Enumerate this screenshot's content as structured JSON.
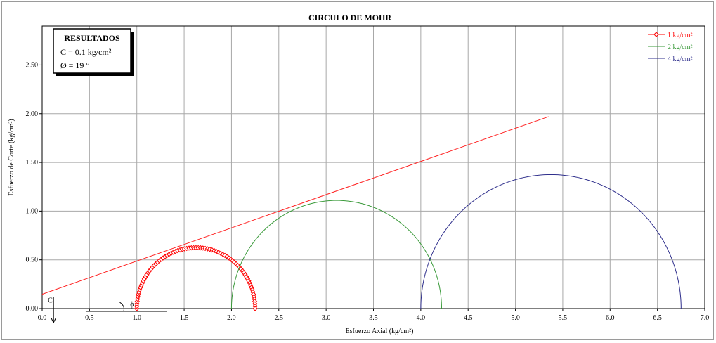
{
  "chart_data": {
    "type": "line",
    "title": "CIRCULO DE MOHR",
    "xlabel": "Esfuerzo Axial (kg/cm²)",
    "ylabel": "Esfuerzo de Corte (kg/cm²)",
    "xlim": [
      0,
      7.0
    ],
    "ylim": [
      0,
      2.9
    ],
    "x_ticks": [
      "0.0",
      "0.5",
      "1.0",
      "1.5",
      "2.0",
      "2.5",
      "3.0",
      "3.5",
      "4.0",
      "4.5",
      "5.0",
      "5.5",
      "6.0",
      "6.5",
      "7.0"
    ],
    "y_ticks": [
      "0.00",
      "0.50",
      "1.00",
      "1.50",
      "2.00",
      "2.50"
    ],
    "x_tick_values": [
      0,
      0.5,
      1,
      1.5,
      2,
      2.5,
      3,
      3.5,
      4,
      4.5,
      5,
      5.5,
      6,
      6.5,
      7
    ],
    "y_tick_values": [
      0,
      0.5,
      1,
      1.5,
      2,
      2.5
    ],
    "grid": true,
    "legend_position": "top-right",
    "series": [
      {
        "name": "1 kg/cm²",
        "type": "circle",
        "sigma3": 1.0,
        "sigma1": 2.25,
        "color": "#ff0000",
        "marker": "diamond"
      },
      {
        "name": "2 kg/cm²",
        "type": "circle",
        "sigma3": 2.0,
        "sigma1": 4.22,
        "color": "#3a9a3a"
      },
      {
        "name": "4 kg/cm²",
        "type": "circle",
        "sigma3": 4.0,
        "sigma1": 6.75,
        "color": "#2f2f8c"
      }
    ],
    "envelope": {
      "color": "#ff2020",
      "x": [
        -0.05,
        5.35
      ],
      "y": [
        0.13,
        1.97
      ]
    },
    "results": {
      "title": "RESULTADOS",
      "cohesion": "C = 0.1 kg/cm²",
      "angle": "Ø = 19 °"
    },
    "annotations": {
      "c_label": "C",
      "phi_label": "ϕ"
    }
  }
}
